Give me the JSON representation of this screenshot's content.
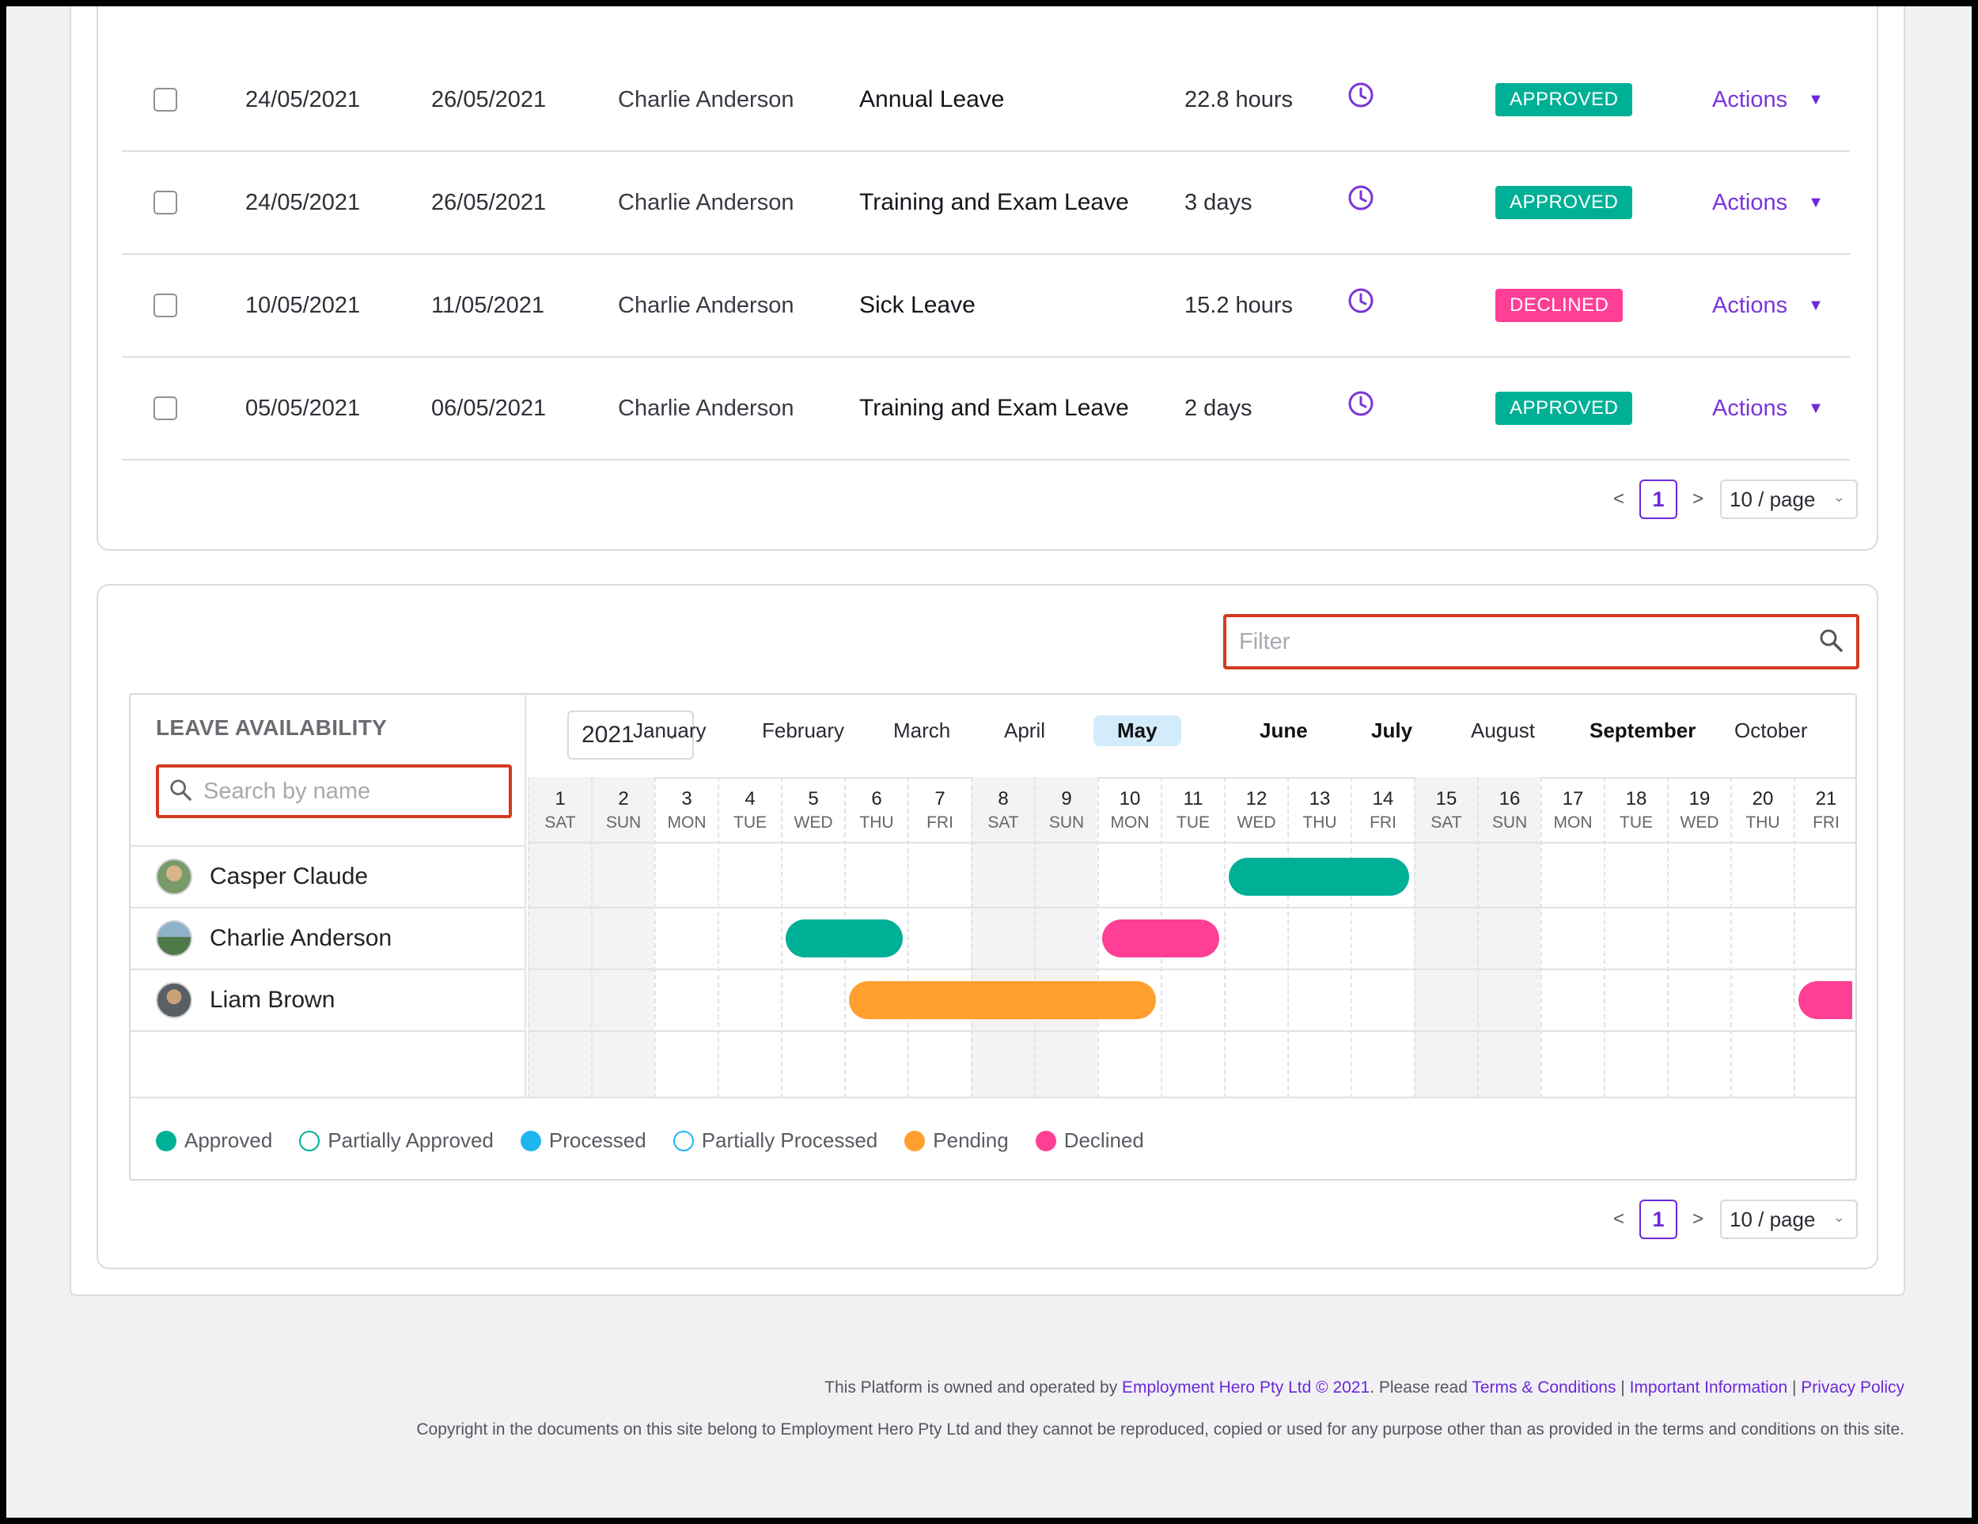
{
  "leave_requests": [
    {
      "start": "24/05/2021",
      "end": "26/05/2021",
      "name": "Charlie Anderson",
      "type": "Annual Leave",
      "duration": "22.8 hours",
      "status": "APPROVED",
      "actions": "Actions"
    },
    {
      "start": "24/05/2021",
      "end": "26/05/2021",
      "name": "Charlie Anderson",
      "type": "Training and Exam Leave",
      "duration": "3 days",
      "status": "APPROVED",
      "actions": "Actions"
    },
    {
      "start": "10/05/2021",
      "end": "11/05/2021",
      "name": "Charlie Anderson",
      "type": "Sick Leave",
      "duration": "15.2 hours",
      "status": "DECLINED",
      "actions": "Actions"
    },
    {
      "start": "05/05/2021",
      "end": "06/05/2021",
      "name": "Charlie Anderson",
      "type": "Training and Exam Leave",
      "duration": "2 days",
      "status": "APPROVED",
      "actions": "Actions"
    }
  ],
  "pagination": {
    "prev": "<",
    "page": "1",
    "next": ">",
    "page_size": "10 / page"
  },
  "filter": {
    "placeholder": "Filter"
  },
  "availability": {
    "title": "LEAVE AVAILABILITY",
    "search_placeholder": "Search by name",
    "year": "2021",
    "months": [
      "January",
      "February",
      "March",
      "April",
      "May",
      "June",
      "July",
      "August",
      "September",
      "October"
    ],
    "selected_month": "May",
    "bold_months": [
      "June",
      "July",
      "September"
    ],
    "days": [
      {
        "num": "1",
        "name": "SAT",
        "weekend": true
      },
      {
        "num": "2",
        "name": "SUN",
        "weekend": true
      },
      {
        "num": "3",
        "name": "MON",
        "weekend": false
      },
      {
        "num": "4",
        "name": "TUE",
        "weekend": false
      },
      {
        "num": "5",
        "name": "WED",
        "weekend": false
      },
      {
        "num": "6",
        "name": "THU",
        "weekend": false
      },
      {
        "num": "7",
        "name": "FRI",
        "weekend": false
      },
      {
        "num": "8",
        "name": "SAT",
        "weekend": true
      },
      {
        "num": "9",
        "name": "SUN",
        "weekend": true
      },
      {
        "num": "10",
        "name": "MON",
        "weekend": false
      },
      {
        "num": "11",
        "name": "TUE",
        "weekend": false
      },
      {
        "num": "12",
        "name": "WED",
        "weekend": false
      },
      {
        "num": "13",
        "name": "THU",
        "weekend": false
      },
      {
        "num": "14",
        "name": "FRI",
        "weekend": false
      },
      {
        "num": "15",
        "name": "SAT",
        "weekend": true
      },
      {
        "num": "16",
        "name": "SUN",
        "weekend": true
      },
      {
        "num": "17",
        "name": "MON",
        "weekend": false
      },
      {
        "num": "18",
        "name": "TUE",
        "weekend": false
      },
      {
        "num": "19",
        "name": "WED",
        "weekend": false
      },
      {
        "num": "20",
        "name": "THU",
        "weekend": false
      },
      {
        "num": "21",
        "name": "FRI",
        "weekend": false
      }
    ],
    "employees": [
      {
        "name": "Casper Claude",
        "leaves": [
          {
            "from": 12,
            "to": 14,
            "status": "approved"
          }
        ]
      },
      {
        "name": "Charlie Anderson",
        "leaves": [
          {
            "from": 5,
            "to": 6,
            "status": "approved"
          },
          {
            "from": 10,
            "to": 11,
            "status": "declined"
          }
        ]
      },
      {
        "name": "Liam Brown",
        "leaves": [
          {
            "from": 6,
            "to": 10,
            "status": "pending"
          },
          {
            "from": 21,
            "to": 21,
            "status": "declined"
          }
        ]
      }
    ],
    "legend": [
      {
        "label": "Approved",
        "color": "#00b096",
        "hollow": false
      },
      {
        "label": "Partially Approved",
        "color": "#00b096",
        "hollow": true
      },
      {
        "label": "Processed",
        "color": "#1fb6f0",
        "hollow": false
      },
      {
        "label": "Partially Processed",
        "color": "#1fb6f0",
        "hollow": true
      },
      {
        "label": "Pending",
        "color": "#ff9f2e",
        "hollow": false
      },
      {
        "label": "Declined",
        "color": "#ff3f95",
        "hollow": false
      }
    ]
  },
  "footer": {
    "line1_prefix": "This Platform is owned and operated by ",
    "company_link": "Employment Hero Pty Ltd © 2021",
    "line1_mid": ". Please read ",
    "terms_link": "Terms & Conditions",
    "sep": " | ",
    "info_link": "Important Information",
    "privacy_link": "Privacy Policy",
    "line2": "Copyright in the documents on this site belong to Employment Hero Pty Ltd and they cannot be reproduced, copied or used for any purpose other than as provided in the terms and conditions on this site."
  },
  "colors": {
    "accent": "#6d28d9",
    "approved": "#00b096",
    "declined": "#ff3f95",
    "pending": "#ff9f2e",
    "highlight_border": "#d43a1f"
  }
}
